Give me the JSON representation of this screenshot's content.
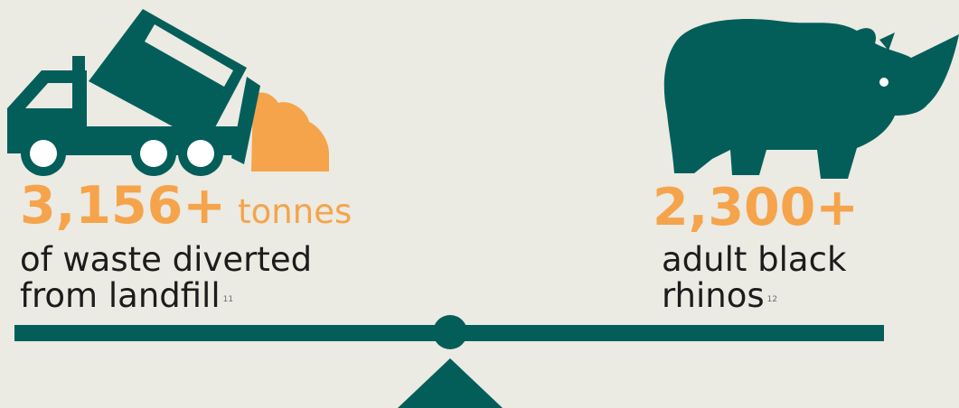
{
  "left_stat": {
    "value": "3,156+",
    "unit": "tonnes",
    "line1": "of waste diverted",
    "line2": "from landfill",
    "footnote": "11",
    "icon": "dump-truck-icon"
  },
  "right_stat": {
    "value": "2,300+",
    "line1": "adult black",
    "line2": "rhinos",
    "footnote": "12",
    "icon": "rhino-icon"
  },
  "colors": {
    "background": "#ebeae3",
    "teal": "#035e5a",
    "orange": "#f5a44b",
    "text": "#1c1c1c"
  }
}
